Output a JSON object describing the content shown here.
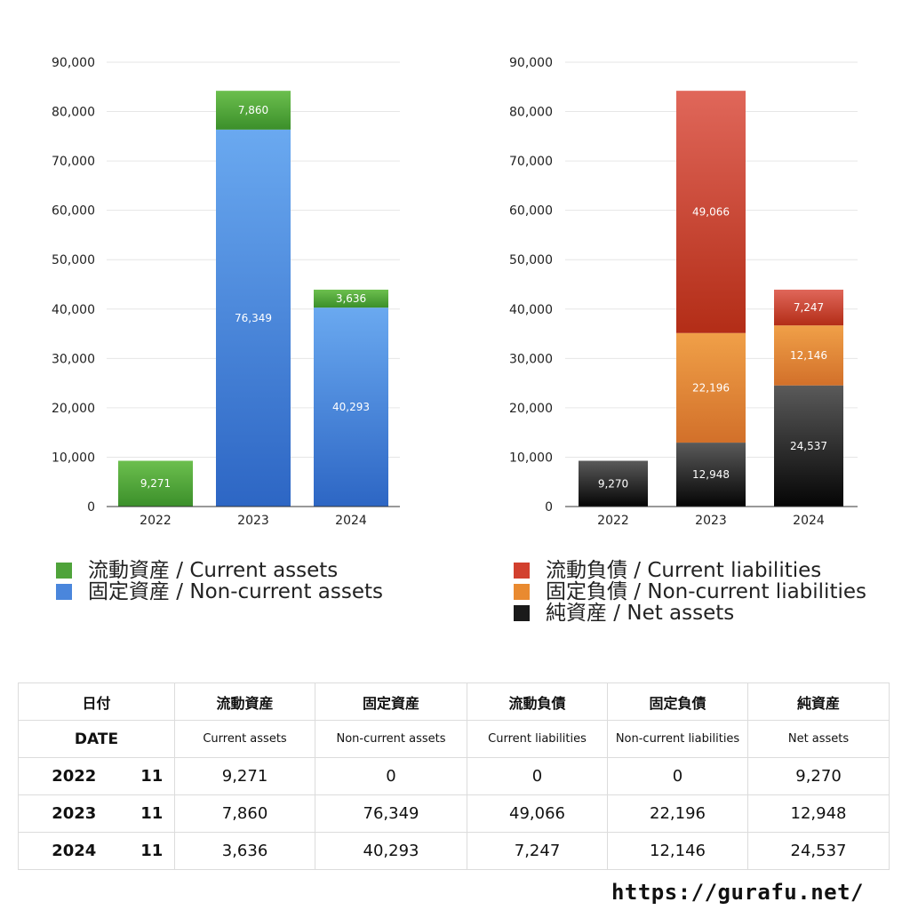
{
  "chart_data": [
    {
      "type": "bar",
      "stacked": true,
      "categories": [
        "2022",
        "2023",
        "2024"
      ],
      "ylim": [
        0,
        90000
      ],
      "yticks": [
        "0",
        "10,000",
        "20,000",
        "30,000",
        "40,000",
        "50,000",
        "60,000",
        "70,000",
        "80,000",
        "90,000"
      ],
      "grid": true,
      "series": [
        {
          "name": "固定資産 / Non-current assets",
          "values": [
            0,
            76349,
            40293
          ],
          "labels": [
            "",
            "76,349",
            "40,293"
          ],
          "color_top": "#6aa9f0",
          "color_bottom": "#2d66c4"
        },
        {
          "name": "流動資産 / Current assets",
          "values": [
            9271,
            7860,
            3636
          ],
          "labels": [
            "9,271",
            "7,860",
            "3,636"
          ],
          "color_top": "#6cbf4e",
          "color_bottom": "#3b8f2a"
        }
      ],
      "legend": [
        {
          "label": "流動資産 / Current assets",
          "color": "#4fa33a"
        },
        {
          "label": "固定資産 / Non-current assets",
          "color": "#4a86dc"
        }
      ]
    },
    {
      "type": "bar",
      "stacked": true,
      "categories": [
        "2022",
        "2023",
        "2024"
      ],
      "ylim": [
        0,
        90000
      ],
      "yticks": [
        "0",
        "10,000",
        "20,000",
        "30,000",
        "40,000",
        "50,000",
        "60,000",
        "70,000",
        "80,000",
        "90,000"
      ],
      "grid": true,
      "series": [
        {
          "name": "純資産 / Net assets",
          "values": [
            9270,
            12948,
            24537
          ],
          "labels": [
            "9,270",
            "12,948",
            "24,537"
          ],
          "color_top": "#5a5a5a",
          "color_bottom": "#050505"
        },
        {
          "name": "固定負債 / Non-current liabilities",
          "values": [
            0,
            22196,
            12146
          ],
          "labels": [
            "",
            "22,196",
            "12,146"
          ],
          "color_top": "#f0a048",
          "color_bottom": "#d2702a"
        },
        {
          "name": "流動負債 / Current liabilities",
          "values": [
            0,
            49066,
            7247
          ],
          "labels": [
            "",
            "49,066",
            "7,247"
          ],
          "color_top": "#e0675a",
          "color_bottom": "#b32d17"
        }
      ],
      "legend": [
        {
          "label": "流動負債 / Current liabilities",
          "color": "#d2402e"
        },
        {
          "label": "固定負債 / Non-current liabilities",
          "color": "#e98a30"
        },
        {
          "label": "純資産 / Net assets",
          "color": "#1a1a1a"
        }
      ]
    }
  ],
  "table": {
    "header_jp": [
      "日付",
      "流動資産",
      "固定資産",
      "流動負債",
      "固定負債",
      "純資産"
    ],
    "header_en": [
      "DATE",
      "Current assets",
      "Non-current assets",
      "Current liabilities",
      "Non-current liabilities",
      "Net assets"
    ],
    "rows": [
      {
        "year": "2022",
        "month": "11",
        "values": [
          "9,271",
          "0",
          "0",
          "0",
          "9,270"
        ]
      },
      {
        "year": "2023",
        "month": "11",
        "values": [
          "7,860",
          "76,349",
          "49,066",
          "22,196",
          "12,948"
        ]
      },
      {
        "year": "2024",
        "month": "11",
        "values": [
          "3,636",
          "40,293",
          "7,247",
          "12,146",
          "24,537"
        ]
      }
    ]
  },
  "footer": {
    "url": "https://gurafu.net/"
  }
}
